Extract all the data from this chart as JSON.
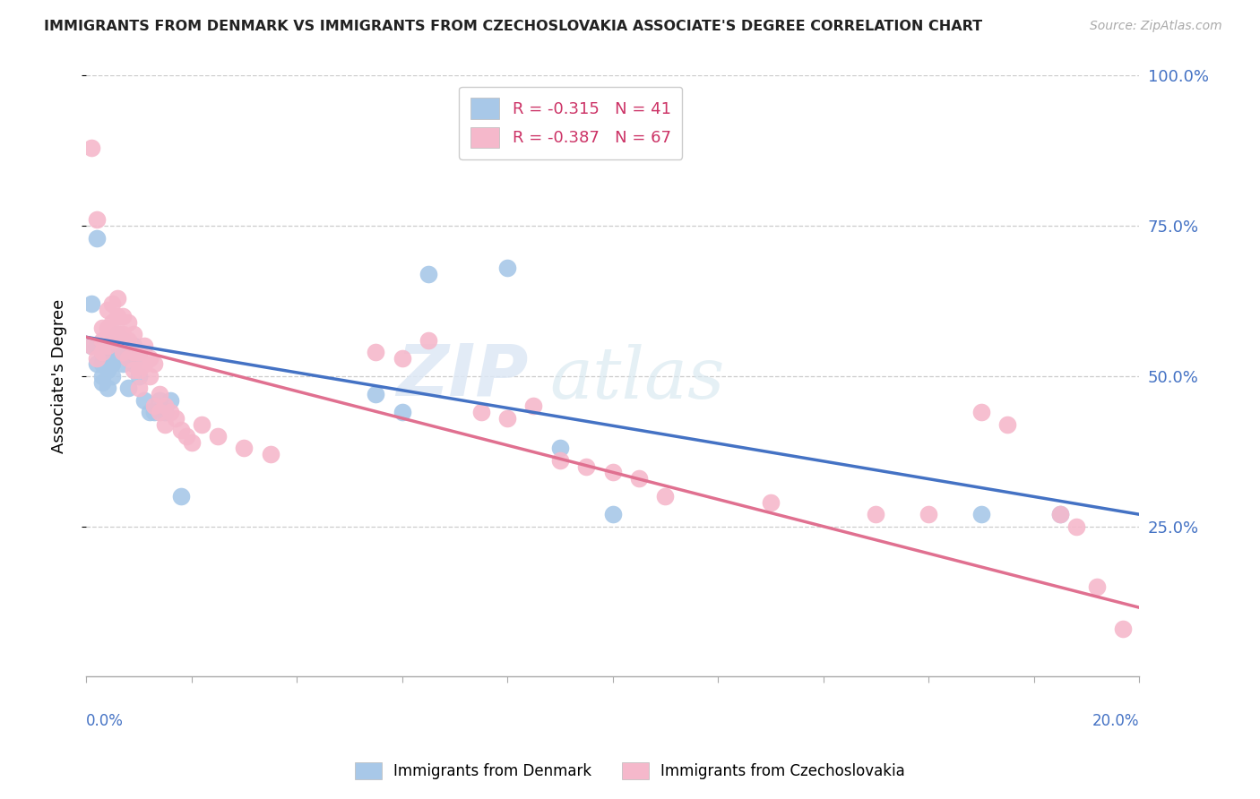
{
  "title": "IMMIGRANTS FROM DENMARK VS IMMIGRANTS FROM CZECHOSLOVAKIA ASSOCIATE'S DEGREE CORRELATION CHART",
  "source": "Source: ZipAtlas.com",
  "ylabel": "Associate's Degree",
  "denmark_color": "#a8c8e8",
  "czech_color": "#f5b8cb",
  "denmark_line_color": "#4472c4",
  "czech_line_color": "#e07090",
  "watermark_zip": "ZIP",
  "watermark_atlas": "atlas",
  "denmark_scatter_x": [
    0.001,
    0.001,
    0.002,
    0.002,
    0.002,
    0.003,
    0.003,
    0.003,
    0.003,
    0.004,
    0.004,
    0.004,
    0.005,
    0.005,
    0.005,
    0.006,
    0.006,
    0.007,
    0.007,
    0.007,
    0.008,
    0.008,
    0.009,
    0.009,
    0.01,
    0.01,
    0.011,
    0.012,
    0.013,
    0.014,
    0.015,
    0.016,
    0.018,
    0.055,
    0.06,
    0.065,
    0.08,
    0.09,
    0.1,
    0.17,
    0.185
  ],
  "denmark_scatter_y": [
    0.62,
    0.55,
    0.73,
    0.55,
    0.52,
    0.54,
    0.52,
    0.5,
    0.49,
    0.53,
    0.51,
    0.48,
    0.54,
    0.52,
    0.5,
    0.57,
    0.55,
    0.56,
    0.54,
    0.52,
    0.53,
    0.48,
    0.55,
    0.52,
    0.54,
    0.5,
    0.46,
    0.44,
    0.44,
    0.46,
    0.44,
    0.46,
    0.3,
    0.47,
    0.44,
    0.67,
    0.68,
    0.38,
    0.27,
    0.27,
    0.27
  ],
  "czech_scatter_x": [
    0.001,
    0.001,
    0.002,
    0.002,
    0.003,
    0.003,
    0.003,
    0.004,
    0.004,
    0.004,
    0.005,
    0.005,
    0.005,
    0.006,
    0.006,
    0.006,
    0.007,
    0.007,
    0.007,
    0.008,
    0.008,
    0.008,
    0.009,
    0.009,
    0.009,
    0.01,
    0.01,
    0.01,
    0.011,
    0.011,
    0.012,
    0.012,
    0.013,
    0.013,
    0.014,
    0.014,
    0.015,
    0.015,
    0.016,
    0.017,
    0.018,
    0.019,
    0.02,
    0.022,
    0.025,
    0.03,
    0.035,
    0.055,
    0.06,
    0.065,
    0.075,
    0.08,
    0.085,
    0.09,
    0.095,
    0.1,
    0.105,
    0.11,
    0.13,
    0.15,
    0.16,
    0.17,
    0.175,
    0.185,
    0.188,
    0.192,
    0.197
  ],
  "czech_scatter_y": [
    0.88,
    0.55,
    0.76,
    0.53,
    0.58,
    0.56,
    0.54,
    0.61,
    0.58,
    0.55,
    0.62,
    0.59,
    0.56,
    0.63,
    0.6,
    0.57,
    0.6,
    0.57,
    0.54,
    0.59,
    0.56,
    0.53,
    0.57,
    0.54,
    0.51,
    0.54,
    0.51,
    0.48,
    0.55,
    0.52,
    0.53,
    0.5,
    0.52,
    0.45,
    0.47,
    0.44,
    0.45,
    0.42,
    0.44,
    0.43,
    0.41,
    0.4,
    0.39,
    0.42,
    0.4,
    0.38,
    0.37,
    0.54,
    0.53,
    0.56,
    0.44,
    0.43,
    0.45,
    0.36,
    0.35,
    0.34,
    0.33,
    0.3,
    0.29,
    0.27,
    0.27,
    0.44,
    0.42,
    0.27,
    0.25,
    0.15,
    0.08
  ],
  "denmark_line": {
    "x0": 0.0,
    "x1": 0.2,
    "y0": 0.565,
    "y1": 0.27
  },
  "czech_line": {
    "x0": 0.0,
    "x1": 0.2,
    "y0": 0.565,
    "y1": 0.115
  },
  "xlim": [
    0,
    0.2
  ],
  "ylim": [
    0,
    1.0
  ],
  "ytick_vals": [
    0.25,
    0.5,
    0.75,
    1.0
  ],
  "ytick_labels": [
    "25.0%",
    "50.0%",
    "75.0%",
    "100.0%"
  ],
  "xtick_vals": [
    0.0,
    0.02,
    0.04,
    0.06,
    0.08,
    0.1,
    0.12,
    0.14,
    0.16,
    0.18,
    0.2
  ],
  "legend1_label": "R = -0.315   N = 41",
  "legend2_label": "R = -0.387   N = 67",
  "bottom_legend1": "Immigrants from Denmark",
  "bottom_legend2": "Immigrants from Czechoslovakia",
  "axis_label_color": "#4472c4",
  "grid_color": "#cccccc",
  "title_color": "#222222",
  "source_color": "#aaaaaa"
}
